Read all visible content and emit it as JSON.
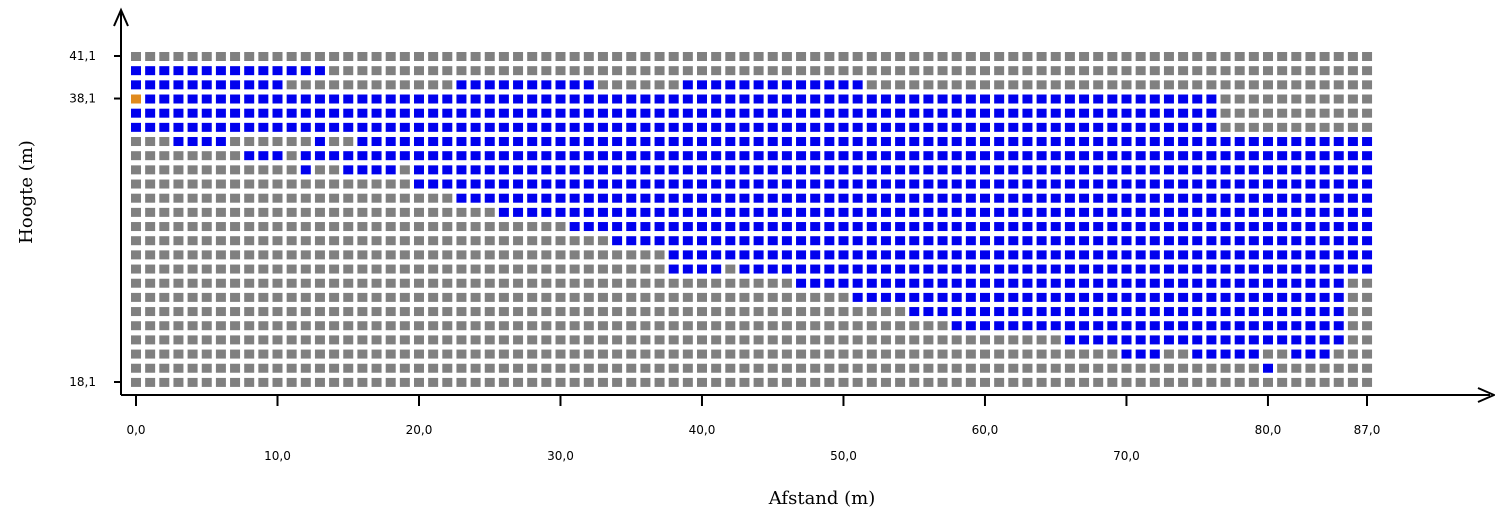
{
  "chart_data": {
    "type": "heatmap",
    "xlabel": "Afstand (m)",
    "ylabel": "Hoogte (m)",
    "xlim": [
      0,
      87
    ],
    "ylim": [
      18.1,
      41.1
    ],
    "x_ticks_upper": [
      "0,0",
      "20,0",
      "40,0",
      "60,0",
      "80,0",
      "87,0"
    ],
    "x_ticks_lower": [
      "10,0",
      "30,0",
      "50,0",
      "70,0"
    ],
    "y_ticks": [
      "41,1",
      "38,1",
      "18,1"
    ],
    "cell_states": [
      "grey",
      "blue",
      "orange"
    ],
    "colors": {
      "grey": "#808080",
      "blue": "#0000ee",
      "orange": "#e08a1e",
      "axis": "#000000"
    },
    "columns": 88,
    "rows": 24,
    "orange_cell": {
      "col": 0,
      "row": 3
    },
    "blue_runs_per_row": [
      [],
      [
        [
          0,
          13
        ]
      ],
      [
        [
          0,
          10
        ],
        [
          23,
          32
        ],
        [
          39,
          51
        ]
      ],
      [
        [
          0,
          76
        ]
      ],
      [
        [
          0,
          76
        ]
      ],
      [
        [
          0,
          76
        ]
      ],
      [
        [
          3,
          6
        ],
        [
          13,
          13
        ],
        [
          16,
          87
        ]
      ],
      [
        [
          8,
          10
        ],
        [
          12,
          87
        ]
      ],
      [
        [
          12,
          12
        ],
        [
          15,
          18
        ],
        [
          20,
          87
        ]
      ],
      [
        [
          20,
          87
        ]
      ],
      [
        [
          23,
          87
        ]
      ],
      [
        [
          26,
          87
        ]
      ],
      [
        [
          31,
          87
        ]
      ],
      [
        [
          34,
          87
        ]
      ],
      [
        [
          38,
          87
        ]
      ],
      [
        [
          38,
          41
        ],
        [
          43,
          44
        ],
        [
          45,
          87
        ]
      ],
      [
        [
          47,
          85
        ]
      ],
      [
        [
          51,
          85
        ]
      ],
      [
        [
          55,
          85
        ]
      ],
      [
        [
          58,
          85
        ]
      ],
      [
        [
          66,
          85
        ]
      ],
      [
        [
          70,
          72
        ],
        [
          75,
          79
        ],
        [
          82,
          84
        ]
      ],
      [
        [
          80,
          80
        ]
      ],
      []
    ]
  }
}
